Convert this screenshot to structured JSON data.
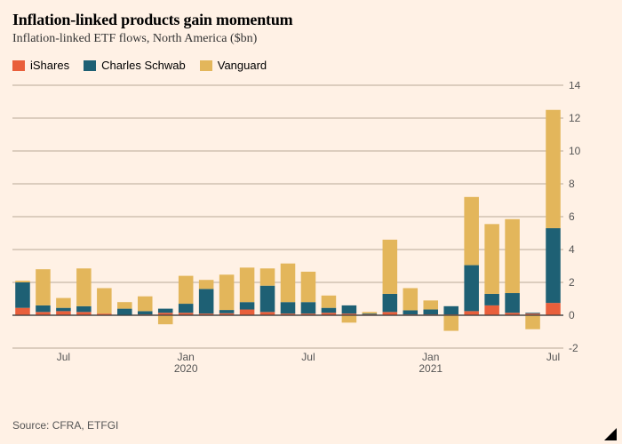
{
  "chart": {
    "type": "stacked-bar",
    "title": "Inflation-linked products gain momentum",
    "subtitle": "Inflation-linked ETF flows, North America ($bn)",
    "source_label": "Source: CFRA, ETFGI",
    "background_color": "#fff1e5",
    "title_fontsize": 18,
    "subtitle_fontsize": 14,
    "source_fontsize": 12,
    "legend_fontsize": 13,
    "axis_fontsize": 12,
    "grid_color": "#b8a998",
    "zero_line_color": "#404040",
    "legend": [
      {
        "label": "iShares",
        "color": "#e95f3b"
      },
      {
        "label": "Charles Schwab",
        "color": "#1e6074"
      },
      {
        "label": "Vanguard",
        "color": "#e3b65b"
      }
    ],
    "y_axis": {
      "min": -2,
      "max": 14,
      "ticks": [
        -2,
        0,
        2,
        4,
        6,
        8,
        10,
        12,
        14
      ]
    },
    "x_axis": {
      "periods": [
        "2019-05",
        "2019-06",
        "2019-07",
        "2019-08",
        "2019-09",
        "2019-10",
        "2019-11",
        "2019-12",
        "2020-01",
        "2020-02",
        "2020-03",
        "2020-04",
        "2020-05",
        "2020-06",
        "2020-07",
        "2020-08",
        "2020-09",
        "2020-10",
        "2020-11",
        "2020-12",
        "2021-01",
        "2021-02",
        "2021-03",
        "2021-04",
        "2021-05",
        "2021-06",
        "2021-07"
      ],
      "tick_labels": [
        {
          "period": "2019-07",
          "label": "Jul"
        },
        {
          "period": "2020-01",
          "label": "Jan\n2020"
        },
        {
          "period": "2020-07",
          "label": "Jul"
        },
        {
          "period": "2021-01",
          "label": "Jan\n2021"
        },
        {
          "period": "2021-07",
          "label": "Jul"
        }
      ]
    },
    "series_order": [
      "iShares",
      "Charles Schwab",
      "Vanguard"
    ],
    "series_colors": {
      "iShares": "#e95f3b",
      "Charles Schwab": "#1e6074",
      "Vanguard": "#e3b65b"
    },
    "data": [
      {
        "period": "2019-05",
        "iShares": 0.45,
        "Charles Schwab": 1.55,
        "Vanguard": 0.1
      },
      {
        "period": "2019-06",
        "iShares": 0.2,
        "Charles Schwab": 0.4,
        "Vanguard": 2.2
      },
      {
        "period": "2019-07",
        "iShares": 0.25,
        "Charles Schwab": 0.2,
        "Vanguard": 0.6
      },
      {
        "period": "2019-08",
        "iShares": 0.2,
        "Charles Schwab": 0.35,
        "Vanguard": 2.3
      },
      {
        "period": "2019-09",
        "iShares": 0.1,
        "Charles Schwab": 0.0,
        "Vanguard": 1.55
      },
      {
        "period": "2019-10",
        "iShares": 0.0,
        "Charles Schwab": 0.4,
        "Vanguard": 0.4
      },
      {
        "period": "2019-11",
        "iShares": 0.05,
        "Charles Schwab": 0.2,
        "Vanguard": 0.9
      },
      {
        "period": "2019-12",
        "iShares": 0.15,
        "Charles Schwab": 0.25,
        "Vanguard": -0.55
      },
      {
        "period": "2020-01",
        "iShares": 0.15,
        "Charles Schwab": 0.55,
        "Vanguard": 1.7
      },
      {
        "period": "2020-02",
        "iShares": 0.1,
        "Charles Schwab": 1.5,
        "Vanguard": 0.55
      },
      {
        "period": "2020-03",
        "iShares": 0.12,
        "Charles Schwab": 0.2,
        "Vanguard": 2.15
      },
      {
        "period": "2020-04",
        "iShares": 0.35,
        "Charles Schwab": 0.45,
        "Vanguard": 2.1
      },
      {
        "period": "2020-05",
        "iShares": 0.2,
        "Charles Schwab": 1.6,
        "Vanguard": 1.05
      },
      {
        "period": "2020-06",
        "iShares": 0.1,
        "Charles Schwab": 0.7,
        "Vanguard": 2.35
      },
      {
        "period": "2020-07",
        "iShares": 0.1,
        "Charles Schwab": 0.7,
        "Vanguard": 1.85
      },
      {
        "period": "2020-08",
        "iShares": 0.15,
        "Charles Schwab": 0.3,
        "Vanguard": 0.75
      },
      {
        "period": "2020-09",
        "iShares": 0.1,
        "Charles Schwab": 0.5,
        "Vanguard": -0.45
      },
      {
        "period": "2020-10",
        "iShares": 0.05,
        "Charles Schwab": 0.05,
        "Vanguard": 0.1
      },
      {
        "period": "2020-11",
        "iShares": 0.2,
        "Charles Schwab": 1.1,
        "Vanguard": 3.3
      },
      {
        "period": "2020-12",
        "iShares": 0.05,
        "Charles Schwab": 0.25,
        "Vanguard": 1.35
      },
      {
        "period": "2021-01",
        "iShares": 0.05,
        "Charles Schwab": 0.3,
        "Vanguard": 0.55
      },
      {
        "period": "2021-02",
        "iShares": 0.05,
        "Charles Schwab": 0.5,
        "Vanguard": -0.95
      },
      {
        "period": "2021-03",
        "iShares": 0.25,
        "Charles Schwab": 2.8,
        "Vanguard": 4.15
      },
      {
        "period": "2021-04",
        "iShares": 0.6,
        "Charles Schwab": 0.7,
        "Vanguard": 4.25
      },
      {
        "period": "2021-05",
        "iShares": 0.15,
        "Charles Schwab": 1.2,
        "Vanguard": 4.5
      },
      {
        "period": "2021-06",
        "iShares": 0.1,
        "Charles Schwab": 0.05,
        "Vanguard": -0.85
      },
      {
        "period": "2021-07",
        "iShares": 0.75,
        "Charles Schwab": 4.55,
        "Vanguard": 7.2
      }
    ],
    "bar_gap_ratio": 0.28
  }
}
